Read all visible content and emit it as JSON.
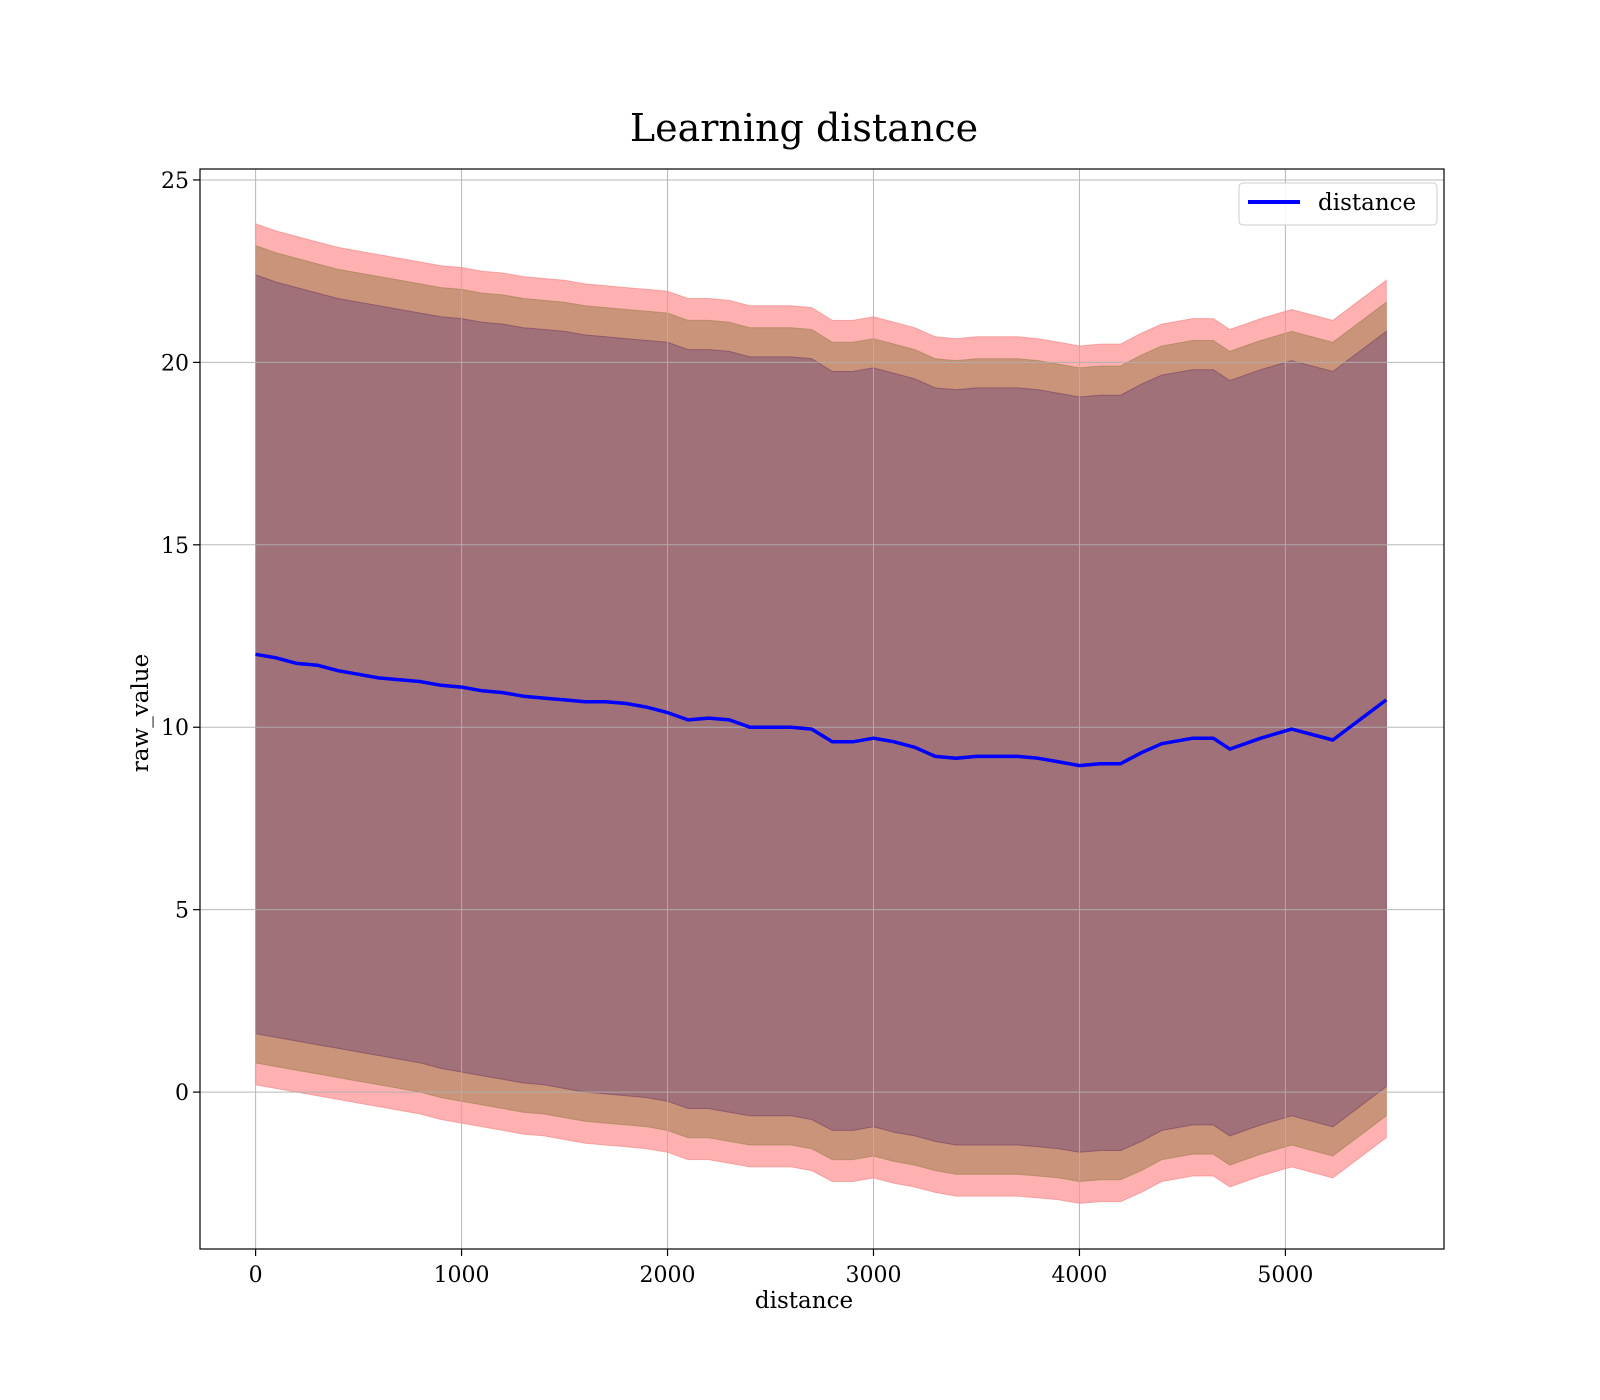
{
  "chart_data": {
    "type": "line",
    "title": "Learning distance",
    "xlabel": "distance",
    "ylabel": "raw_value",
    "xlim": [
      -270,
      5770
    ],
    "ylim": [
      -4.3,
      25.3
    ],
    "xticks": [
      0,
      1000,
      2000,
      3000,
      4000,
      5000
    ],
    "yticks": [
      0,
      5,
      10,
      15,
      20,
      25
    ],
    "grid": true,
    "legend": {
      "position": "top-right",
      "entries": [
        "distance"
      ]
    },
    "colors": {
      "line": "#0000ff",
      "band_outer": "#ffb0b0",
      "band_middle": "#c99479",
      "band_inner": "#a1717a",
      "band_outer_edge": "#f08080",
      "band_middle_edge": "#a08050",
      "band_inner_edge": "#7a4060"
    },
    "series": [
      {
        "name": "distance",
        "x": [
          0,
          100,
          200,
          300,
          400,
          500,
          600,
          700,
          800,
          900,
          1000,
          1100,
          1200,
          1300,
          1400,
          1500,
          1600,
          1700,
          1800,
          1900,
          2000,
          2100,
          2200,
          2300,
          2400,
          2500,
          2600,
          2700,
          2800,
          2900,
          3000,
          3100,
          3200,
          3300,
          3400,
          3500,
          3600,
          3700,
          3800,
          3900,
          4000,
          4100,
          4200,
          4300,
          4400,
          4550,
          4650,
          4730,
          4880,
          5030,
          5230,
          5490
        ],
        "y": [
          12.0,
          11.9,
          11.75,
          11.7,
          11.55,
          11.45,
          11.35,
          11.3,
          11.25,
          11.15,
          11.1,
          11.0,
          10.95,
          10.85,
          10.8,
          10.75,
          10.7,
          10.7,
          10.65,
          10.55,
          10.4,
          10.2,
          10.25,
          10.2,
          10.0,
          10.0,
          10.0,
          9.95,
          9.6,
          9.6,
          9.7,
          9.6,
          9.45,
          9.2,
          9.15,
          9.2,
          9.2,
          9.2,
          9.15,
          9.05,
          8.95,
          9.0,
          9.0,
          9.3,
          9.55,
          9.7,
          9.7,
          9.4,
          9.7,
          9.95,
          9.65,
          10.75
        ]
      }
    ],
    "bands": [
      {
        "upper": [
          23.8,
          23.6,
          23.45,
          23.3,
          23.15,
          23.05,
          22.95,
          22.85,
          22.75,
          22.65,
          22.6,
          22.5,
          22.45,
          22.35,
          22.3,
          22.25,
          22.15,
          22.1,
          22.05,
          22.0,
          21.95,
          21.75,
          21.75,
          21.7,
          21.55,
          21.55,
          21.55,
          21.5,
          21.15,
          21.15,
          21.25,
          21.1,
          20.95,
          20.7,
          20.65,
          20.7,
          20.7,
          20.7,
          20.65,
          20.55,
          20.45,
          20.5,
          20.5,
          20.8,
          21.05,
          21.2,
          21.2,
          20.9,
          21.2,
          21.45,
          21.15,
          22.25
        ],
        "lower": [
          0.2,
          0.1,
          0.0,
          -0.1,
          -0.2,
          -0.3,
          -0.4,
          -0.5,
          -0.6,
          -0.75,
          -0.85,
          -0.95,
          -1.05,
          -1.15,
          -1.2,
          -1.3,
          -1.4,
          -1.45,
          -1.5,
          -1.55,
          -1.65,
          -1.85,
          -1.85,
          -1.95,
          -2.05,
          -2.05,
          -2.05,
          -2.15,
          -2.45,
          -2.45,
          -2.35,
          -2.5,
          -2.6,
          -2.75,
          -2.85,
          -2.85,
          -2.85,
          -2.85,
          -2.9,
          -2.95,
          -3.05,
          -3.0,
          -3.0,
          -2.75,
          -2.45,
          -2.3,
          -2.3,
          -2.6,
          -2.3,
          -2.05,
          -2.35,
          -1.25
        ]
      },
      {
        "upper": [
          23.2,
          23.0,
          22.85,
          22.7,
          22.55,
          22.45,
          22.35,
          22.25,
          22.15,
          22.05,
          22.0,
          21.9,
          21.85,
          21.75,
          21.7,
          21.65,
          21.55,
          21.5,
          21.45,
          21.4,
          21.35,
          21.15,
          21.15,
          21.1,
          20.95,
          20.95,
          20.95,
          20.9,
          20.55,
          20.55,
          20.65,
          20.5,
          20.35,
          20.1,
          20.05,
          20.1,
          20.1,
          20.1,
          20.05,
          19.95,
          19.85,
          19.9,
          19.9,
          20.2,
          20.45,
          20.6,
          20.6,
          20.3,
          20.6,
          20.85,
          20.55,
          21.65
        ],
        "lower": [
          0.8,
          0.7,
          0.6,
          0.5,
          0.4,
          0.3,
          0.2,
          0.1,
          0.0,
          -0.15,
          -0.25,
          -0.35,
          -0.45,
          -0.55,
          -0.6,
          -0.7,
          -0.8,
          -0.85,
          -0.9,
          -0.95,
          -1.05,
          -1.25,
          -1.25,
          -1.35,
          -1.45,
          -1.45,
          -1.45,
          -1.55,
          -1.85,
          -1.85,
          -1.75,
          -1.9,
          -2.0,
          -2.15,
          -2.25,
          -2.25,
          -2.25,
          -2.25,
          -2.3,
          -2.35,
          -2.45,
          -2.4,
          -2.4,
          -2.15,
          -1.85,
          -1.7,
          -1.7,
          -2.0,
          -1.7,
          -1.45,
          -1.75,
          -0.65
        ]
      },
      {
        "upper": [
          22.4,
          22.2,
          22.05,
          21.9,
          21.75,
          21.65,
          21.55,
          21.45,
          21.35,
          21.25,
          21.2,
          21.1,
          21.05,
          20.95,
          20.9,
          20.85,
          20.75,
          20.7,
          20.65,
          20.6,
          20.55,
          20.35,
          20.35,
          20.3,
          20.15,
          20.15,
          20.15,
          20.1,
          19.75,
          19.75,
          19.85,
          19.7,
          19.55,
          19.3,
          19.25,
          19.3,
          19.3,
          19.3,
          19.25,
          19.15,
          19.05,
          19.1,
          19.1,
          19.4,
          19.65,
          19.8,
          19.8,
          19.5,
          19.8,
          20.05,
          19.75,
          20.85
        ],
        "lower": [
          1.6,
          1.5,
          1.4,
          1.3,
          1.2,
          1.1,
          1.0,
          0.9,
          0.8,
          0.65,
          0.55,
          0.45,
          0.35,
          0.25,
          0.2,
          0.1,
          0.0,
          -0.05,
          -0.1,
          -0.15,
          -0.25,
          -0.45,
          -0.45,
          -0.55,
          -0.65,
          -0.65,
          -0.65,
          -0.75,
          -1.05,
          -1.05,
          -0.95,
          -1.1,
          -1.2,
          -1.35,
          -1.45,
          -1.45,
          -1.45,
          -1.45,
          -1.5,
          -1.55,
          -1.65,
          -1.6,
          -1.6,
          -1.35,
          -1.05,
          -0.9,
          -0.9,
          -1.2,
          -0.9,
          -0.65,
          -0.95,
          0.15
        ]
      }
    ]
  }
}
